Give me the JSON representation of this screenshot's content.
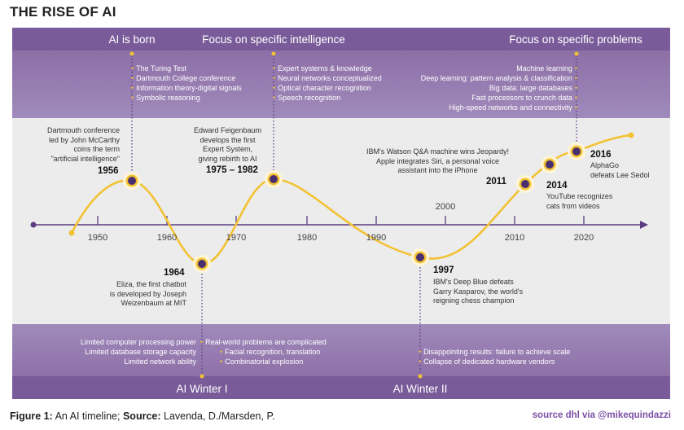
{
  "title": "THE RISE OF AI",
  "top_band": {
    "ai_born": {
      "heading": "AI is born",
      "items": [
        "The Turing Test",
        "Dartmouth College conference",
        "Information theory-digital signals",
        "Symbolic reasoning"
      ]
    },
    "specific_intelligence": {
      "heading": "Focus on specific intelligence",
      "items": [
        "Expert systems & knowledge",
        "Neural networks conceptualized",
        "Optical character recognition",
        "Speech recognition"
      ]
    },
    "specific_problems": {
      "heading": "Focus on specific problems",
      "items": [
        "Machine learning",
        "Deep learning: pattern analysis & classification",
        "Big data: large databases",
        "Fast processors to crunch data",
        "High-speed networks and connectivity"
      ]
    }
  },
  "axis": {
    "years": [
      "1950",
      "1960",
      "1970",
      "1980",
      "1990",
      "2000",
      "2010",
      "2020"
    ]
  },
  "events": {
    "e1956": {
      "year": "1956",
      "lines": [
        "Dartmouth conference",
        "led by John McCarthy",
        "coins the term",
        "\"artificial intelligence\""
      ]
    },
    "e1964": {
      "year": "1964",
      "lines": [
        "Eliza, the first chatbot",
        "is developed by Joseph",
        "Weizenbaum at MIT"
      ]
    },
    "e1975": {
      "year": "1975 – 1982",
      "lines": [
        "Edward Feigenbaum",
        "develops the first",
        "Expert System,",
        "giving rebirth to AI"
      ]
    },
    "e1997": {
      "year": "1997",
      "lines": [
        "IBM's Deep Blue defeats",
        "Garry Kasparov, the world's",
        "reigning chess champion"
      ]
    },
    "e2011": {
      "year": "2011",
      "lines": [
        "IBM's Watson Q&A machine wins Jeopardy!",
        "Apple integrates Siri, a personal voice",
        "assistant into the iPhone"
      ]
    },
    "e2014": {
      "year": "2014",
      "lines": [
        "YouTube recognizes",
        "cats from videos"
      ]
    },
    "e2016": {
      "year": "2016",
      "lines": [
        "AlphaGo",
        "defeats Lee Sedol"
      ]
    }
  },
  "bottom_band": {
    "winter1": {
      "label": "AI Winter I",
      "left_items": [
        "Limited computer processing power",
        "Limited database storage capacity",
        "Limited network ability"
      ],
      "right_items": [
        "Real-world problems are complicated",
        "Facial recognition, translation",
        "Combinatorial explosion"
      ]
    },
    "winter2": {
      "label": "AI Winter II",
      "items": [
        "Disappointing results: failure to achieve scale",
        "Collapse of dedicated hardware vendors"
      ]
    }
  },
  "caption": {
    "prefix": "Figure 1:",
    "text": " An AI timeline; ",
    "source_label": "Source:",
    "source_text": " Lavenda, D./Marsden, P."
  },
  "credit": "source dhl via @mikequindazzi",
  "colors": {
    "band_purple": "#8667a8",
    "band_light": "#a891c2",
    "axis": "#5a3d82",
    "curve": "#f2c233",
    "gray_bg": "#ececec"
  }
}
